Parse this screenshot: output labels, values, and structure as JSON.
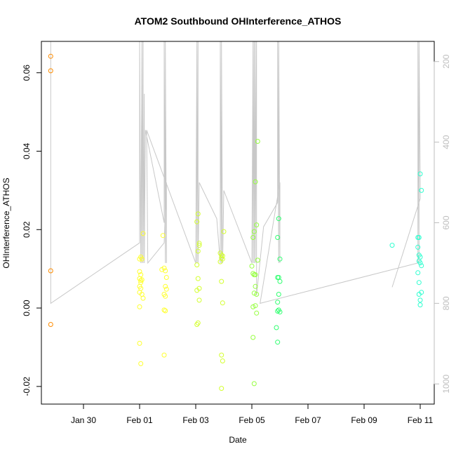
{
  "chart_data": {
    "type": "scatter",
    "title": "ATOM2 Southbound OHInterference_ATHOS",
    "xlabel": "Date",
    "ylabel": "OHInterference_ATHOS",
    "x_unit": "date",
    "xlim": [
      "2017-01-28T12:00",
      "2017-02-11T12:00"
    ],
    "ylim": [
      -0.0245,
      0.068
    ],
    "x_ticks": [
      {
        "label": "Jan 30",
        "value": "2017-01-30T00:00"
      },
      {
        "label": "Feb 01",
        "value": "2017-02-01T00:00"
      },
      {
        "label": "Feb 03",
        "value": "2017-02-03T00:00"
      },
      {
        "label": "Feb 05",
        "value": "2017-02-05T00:00"
      },
      {
        "label": "Feb 07",
        "value": "2017-02-07T00:00"
      },
      {
        "label": "Feb 09",
        "value": "2017-02-09T00:00"
      },
      {
        "label": "Feb 11",
        "value": "2017-02-11T00:00"
      }
    ],
    "y_ticks": [
      {
        "label": "-0.02",
        "value": -0.02
      },
      {
        "label": "0.00",
        "value": 0.0
      },
      {
        "label": "0.02",
        "value": 0.02
      },
      {
        "label": "0.04",
        "value": 0.04
      },
      {
        "label": "0.06",
        "value": 0.06
      }
    ],
    "y2_ticks": [
      {
        "label": "200",
        "value": 200
      },
      {
        "label": "400",
        "value": 400
      },
      {
        "label": "600",
        "value": 600
      },
      {
        "label": "800",
        "value": 800
      },
      {
        "label": "1000",
        "value": 1000
      }
    ],
    "y2lim": [
      1050,
      150
    ],
    "grid": false,
    "legend": "none",
    "point_colors": [
      "#ff8c00",
      "#ffff30",
      "#d4ff30",
      "#96ff40",
      "#30ff70",
      "#30ffd0"
    ],
    "line_color": "#c8c8c8",
    "y2_tick_color": "#bebebe",
    "series": [
      {
        "points": [
          [
            "2017-01-28T20:00",
            0.0642
          ],
          [
            "2017-01-28T20:00",
            0.0605
          ],
          [
            "2017-01-28T20:00",
            0.0095
          ],
          [
            "2017-01-28T20:00",
            -0.0042
          ]
        ]
      },
      {
        "points": [
          [
            "2017-02-01T00:00",
            0.0125
          ],
          [
            "2017-02-01T01:00",
            0.013
          ],
          [
            "2017-02-01T02:00",
            0.0125
          ],
          [
            "2017-02-01T03:00",
            0.019
          ],
          [
            "2017-02-01T00:00",
            0.0093
          ],
          [
            "2017-02-01T01:00",
            0.0085
          ],
          [
            "2017-02-01T00:00",
            0.0075
          ],
          [
            "2017-02-01T01:00",
            0.007
          ],
          [
            "2017-02-01T02:00",
            0.0072
          ],
          [
            "2017-02-01T01:00",
            0.0065
          ],
          [
            "2017-02-01T00:00",
            0.0055
          ],
          [
            "2017-02-01T01:00",
            0.005
          ],
          [
            "2017-02-01T00:00",
            0.004
          ],
          [
            "2017-02-01T02:00",
            0.0035
          ],
          [
            "2017-02-01T03:00",
            0.0025
          ],
          [
            "2017-02-01T00:00",
            0.0003
          ],
          [
            "2017-02-01T00:00",
            -0.009
          ],
          [
            "2017-02-01T01:00",
            -0.0142
          ],
          [
            "2017-02-01T20:00",
            0.0185
          ],
          [
            "2017-02-01T21:00",
            0.0102
          ],
          [
            "2017-02-01T19:00",
            0.0098
          ],
          [
            "2017-02-01T22:00",
            0.0095
          ],
          [
            "2017-02-01T23:00",
            0.0078
          ],
          [
            "2017-02-01T22:00",
            0.0055
          ],
          [
            "2017-02-01T23:00",
            0.0048
          ],
          [
            "2017-02-01T21:00",
            0.0035
          ],
          [
            "2017-02-01T22:00",
            0.003
          ],
          [
            "2017-02-01T21:00",
            -0.0005
          ],
          [
            "2017-02-01T22:00",
            -0.0007
          ],
          [
            "2017-02-01T21:00",
            -0.012
          ]
        ]
      },
      {
        "points": [
          [
            "2017-02-03T02:00",
            0.024
          ],
          [
            "2017-02-03T01:00",
            0.022
          ],
          [
            "2017-02-03T03:00",
            0.0165
          ],
          [
            "2017-02-03T03:00",
            0.016
          ],
          [
            "2017-02-03T02:00",
            0.0145
          ],
          [
            "2017-02-03T01:00",
            0.011
          ],
          [
            "2017-02-03T02:00",
            0.0075
          ],
          [
            "2017-02-03T03:00",
            0.005
          ],
          [
            "2017-02-03T01:00",
            0.0045
          ],
          [
            "2017-02-03T03:00",
            0.002
          ],
          [
            "2017-02-03T02:00",
            -0.0038
          ],
          [
            "2017-02-03T01:00",
            -0.0042
          ],
          [
            "2017-02-03T21:00",
            0.014
          ],
          [
            "2017-02-03T22:00",
            0.0135
          ],
          [
            "2017-02-03T23:00",
            0.0133
          ],
          [
            "2017-02-04T00:00",
            0.0195
          ],
          [
            "2017-02-03T22:00",
            0.0128
          ],
          [
            "2017-02-03T23:00",
            0.0125
          ],
          [
            "2017-02-03T21:00",
            0.0118
          ],
          [
            "2017-02-03T22:00",
            0.0068
          ],
          [
            "2017-02-03T23:00",
            0.0013
          ],
          [
            "2017-02-03T22:00",
            -0.012
          ],
          [
            "2017-02-03T23:00",
            -0.0135
          ],
          [
            "2017-02-03T22:00",
            -0.0205
          ]
        ]
      },
      {
        "points": [
          [
            "2017-02-05T05:00",
            0.0425
          ],
          [
            "2017-02-05T03:00",
            0.0322
          ],
          [
            "2017-02-05T04:00",
            0.0212
          ],
          [
            "2017-02-05T02:00",
            0.0195
          ],
          [
            "2017-02-05T01:00",
            0.018
          ],
          [
            "2017-02-05T05:00",
            0.0122
          ],
          [
            "2017-02-05T00:00",
            0.0107
          ],
          [
            "2017-02-05T01:00",
            0.0088
          ],
          [
            "2017-02-05T03:00",
            0.0085
          ],
          [
            "2017-02-05T02:00",
            0.0085
          ],
          [
            "2017-02-05T03:00",
            0.0055
          ],
          [
            "2017-02-05T02:00",
            0.0038
          ],
          [
            "2017-02-05T04:00",
            0.0035
          ],
          [
            "2017-02-05T01:00",
            0.0003
          ],
          [
            "2017-02-05T03:00",
            0.0006
          ],
          [
            "2017-02-05T04:00",
            -0.0013
          ],
          [
            "2017-02-05T01:00",
            -0.0075
          ],
          [
            "2017-02-05T02:00",
            -0.0193
          ]
        ]
      },
      {
        "points": [
          [
            "2017-02-05T23:00",
            0.0228
          ],
          [
            "2017-02-05T22:00",
            0.018
          ],
          [
            "2017-02-06T00:00",
            0.0125
          ],
          [
            "2017-02-05T22:00",
            0.0078
          ],
          [
            "2017-02-05T23:00",
            0.0078
          ],
          [
            "2017-02-06T00:00",
            0.0068
          ],
          [
            "2017-02-05T23:00",
            0.0035
          ],
          [
            "2017-02-05T22:00",
            0.0015
          ],
          [
            "2017-02-05T23:00",
            -0.0005
          ],
          [
            "2017-02-05T22:00",
            -0.0008
          ],
          [
            "2017-02-06T00:00",
            -0.001
          ],
          [
            "2017-02-05T21:00",
            -0.005
          ],
          [
            "2017-02-05T22:00",
            -0.0087
          ]
        ]
      },
      {
        "points": [
          [
            "2017-02-10T00:00",
            0.016
          ],
          [
            "2017-02-10T22:00",
            0.018
          ],
          [
            "2017-02-10T23:00",
            0.018
          ],
          [
            "2017-02-10T22:00",
            0.0155
          ],
          [
            "2017-02-10T23:00",
            0.0135
          ],
          [
            "2017-02-11T00:00",
            0.013
          ],
          [
            "2017-02-10T23:00",
            0.012
          ],
          [
            "2017-02-11T00:00",
            0.0115
          ],
          [
            "2017-02-11T01:00",
            0.0108
          ],
          [
            "2017-02-10T22:00",
            0.009
          ],
          [
            "2017-02-10T23:00",
            0.0065
          ],
          [
            "2017-02-11T01:00",
            0.004
          ],
          [
            "2017-02-10T23:00",
            0.0035
          ],
          [
            "2017-02-11T00:00",
            0.002
          ],
          [
            "2017-02-11T00:00",
            0.0008
          ],
          [
            "2017-02-11T00:00",
            0.0342
          ],
          [
            "2017-02-11T01:00",
            0.03
          ]
        ]
      }
    ],
    "altitude_track": [
      [
        "2017-01-28T20:00",
        800
      ],
      [
        "2017-01-28T20:00",
        150
      ],
      [
        "2017-01-28T20:00",
        800
      ],
      [
        "2017-02-01T00:00",
        650
      ],
      [
        "2017-02-01T00:00",
        150
      ],
      [
        "2017-02-01T01:00",
        700
      ],
      [
        "2017-02-01T02:00",
        150
      ],
      [
        "2017-02-01T02:00",
        700
      ],
      [
        "2017-02-01T03:00",
        150
      ],
      [
        "2017-02-01T03:00",
        700
      ],
      [
        "2017-02-01T04:00",
        280
      ],
      [
        "2017-02-01T04:00",
        700
      ],
      [
        "2017-02-01T05:00",
        370
      ],
      [
        "2017-02-01T21:00",
        600
      ],
      [
        "2017-02-01T21:00",
        150
      ],
      [
        "2017-02-01T22:00",
        700
      ],
      [
        "2017-02-01T22:00",
        150
      ],
      [
        "2017-02-01T23:00",
        700
      ],
      [
        "2017-02-01T23:00",
        500
      ],
      [
        "2017-02-01T21:00",
        650
      ],
      [
        "2017-02-01T07:00",
        700
      ],
      [
        "2017-02-01T06:00",
        370
      ],
      [
        "2017-02-03T00:00",
        700
      ],
      [
        "2017-02-03T01:00",
        150
      ],
      [
        "2017-02-03T01:00",
        700
      ],
      [
        "2017-02-03T02:00",
        150
      ],
      [
        "2017-02-03T02:00",
        700
      ],
      [
        "2017-02-03T03:00",
        500
      ],
      [
        "2017-02-03T18:00",
        590
      ],
      [
        "2017-02-03T21:00",
        700
      ],
      [
        "2017-02-03T21:00",
        150
      ],
      [
        "2017-02-03T22:00",
        700
      ],
      [
        "2017-02-03T22:00",
        150
      ],
      [
        "2017-02-03T23:00",
        700
      ],
      [
        "2017-02-04T00:00",
        520
      ],
      [
        "2017-02-05T00:00",
        700
      ],
      [
        "2017-02-05T01:00",
        150
      ],
      [
        "2017-02-05T01:00",
        700
      ],
      [
        "2017-02-05T02:00",
        150
      ],
      [
        "2017-02-05T02:00",
        700
      ],
      [
        "2017-02-05T03:00",
        150
      ],
      [
        "2017-02-05T03:00",
        700
      ],
      [
        "2017-02-05T04:00",
        150
      ],
      [
        "2017-02-05T04:00",
        780
      ],
      [
        "2017-02-05T10:00",
        610
      ],
      [
        "2017-02-05T22:00",
        550
      ],
      [
        "2017-02-05T22:00",
        150
      ],
      [
        "2017-02-05T23:00",
        700
      ],
      [
        "2017-02-05T23:00",
        150
      ],
      [
        "2017-02-06T00:00",
        700
      ],
      [
        "2017-02-06T00:00",
        500
      ],
      [
        "2017-02-05T07:00",
        800
      ],
      [
        "2017-02-10T22:00",
        700
      ],
      [
        "2017-02-10T22:00",
        150
      ],
      [
        "2017-02-10T23:00",
        700
      ],
      [
        "2017-02-10T23:00",
        150
      ],
      [
        "2017-02-11T00:00",
        500
      ],
      [
        "2017-02-11T00:00",
        540
      ],
      [
        "2017-02-10T00:00",
        760
      ]
    ]
  }
}
